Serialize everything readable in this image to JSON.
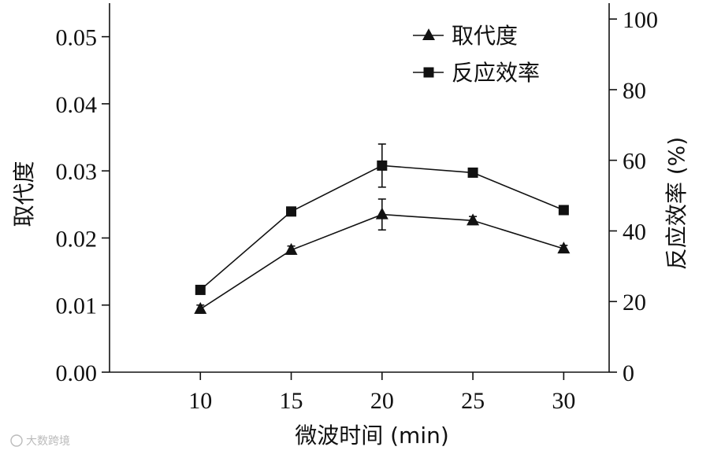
{
  "chart_data": {
    "type": "line",
    "x": [
      10,
      15,
      20,
      25,
      30
    ],
    "xlabel": "微波时间 (min)",
    "ylabel_left": "取代度",
    "ylabel_right": "反应效率 (%)",
    "xticks": [
      "10",
      "15",
      "20",
      "25",
      "30"
    ],
    "yticks_left": [
      "0.00",
      "0.01",
      "0.02",
      "0.03",
      "0.04",
      "0.05"
    ],
    "yticks_right": [
      "0",
      "20",
      "40",
      "60",
      "80",
      "100"
    ],
    "xlim": [
      5,
      32.5
    ],
    "ylim_left": [
      0,
      0.055
    ],
    "ylim_right": [
      0,
      104.5
    ],
    "legend_position": "top-right",
    "series": [
      {
        "name": "取代度",
        "axis": "left",
        "marker": "triangle",
        "values": [
          0.0094,
          0.0182,
          0.0235,
          0.0226,
          0.0184
        ],
        "errors": [
          0.0006,
          0.0006,
          0.0023,
          0.0006,
          0.0005
        ]
      },
      {
        "name": "反应效率",
        "axis": "right",
        "marker": "square",
        "values": [
          23.3,
          45.5,
          58.5,
          56.5,
          45.9
        ],
        "errors": [
          0.8,
          0.8,
          6.1,
          0.8,
          0.6
        ]
      }
    ]
  },
  "watermark": "大数跨境"
}
